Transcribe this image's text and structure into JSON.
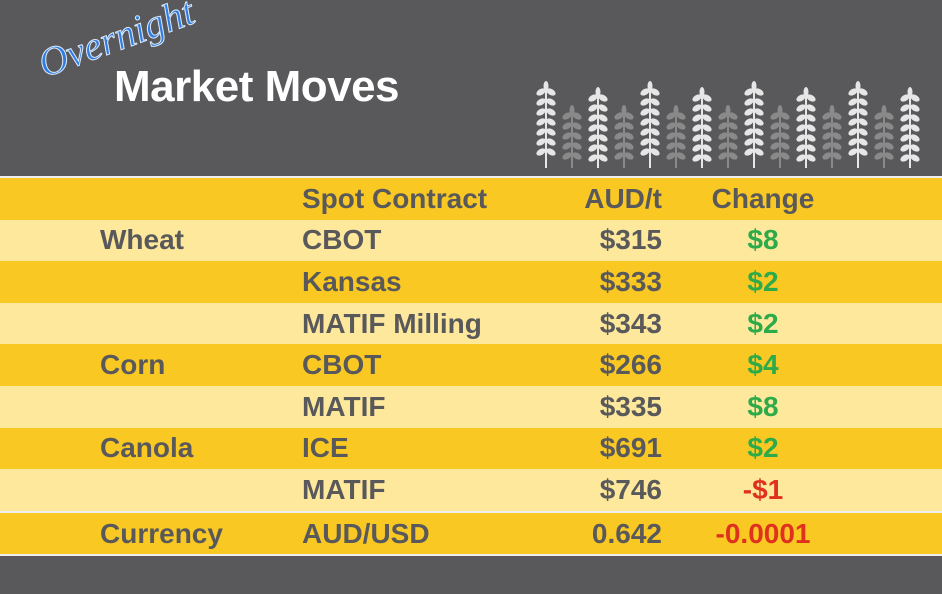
{
  "header": {
    "subtitle": "Overnight",
    "title": "Market Moves"
  },
  "table": {
    "columns": [
      "Spot Contract",
      "AUD/t",
      "Change"
    ],
    "rows": [
      {
        "commodity": "Wheat",
        "contract": "CBOT",
        "price": "$315",
        "change": "$8"
      },
      {
        "contract": "Kansas",
        "price": "$333",
        "change": "$2"
      },
      {
        "contract": "MATIF Milling",
        "price": "$343",
        "change": "$2"
      },
      {
        "commodity": "Corn",
        "contract": "CBOT",
        "price": "$266",
        "change": "$4"
      },
      {
        "contract": "MATIF",
        "price": "$335",
        "change": "$8"
      },
      {
        "commodity": "Canola",
        "contract": "ICE",
        "price": "$691",
        "change": "$2"
      },
      {
        "contract": "MATIF",
        "price": "$746",
        "change": "-$1"
      },
      {
        "commodity": "Currency",
        "contract": "AUD/USD",
        "price": "0.642",
        "change": "-0.0001"
      }
    ]
  }
}
